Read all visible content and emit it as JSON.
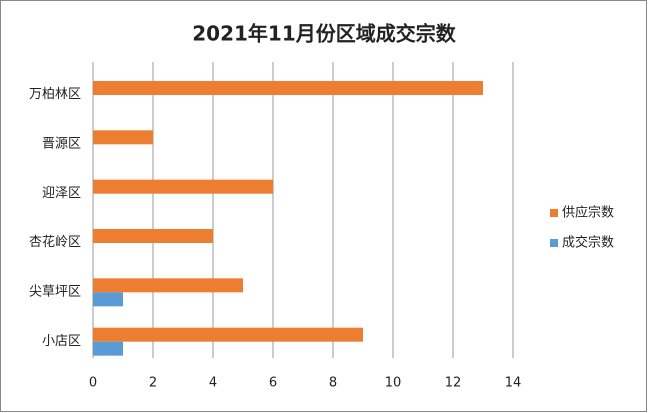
{
  "chart_data": {
    "type": "barh",
    "title": "2021年11月份区域成交宗数",
    "categories": [
      "万柏林区",
      "晋源区",
      "迎泽区",
      "杏花岭区",
      "尖草坪区",
      "小店区"
    ],
    "series": [
      {
        "name": "供应宗数",
        "color": "#ed7d31",
        "values": [
          13,
          2,
          6,
          4,
          5,
          9
        ]
      },
      {
        "name": "成交宗数",
        "color": "#5b9bd5",
        "values": [
          0,
          0,
          0,
          0,
          1,
          1
        ]
      }
    ],
    "xlim": [
      0,
      14
    ],
    "xticks": [
      0,
      2,
      4,
      6,
      8,
      10,
      12,
      14
    ],
    "grid": true,
    "legend": "right"
  }
}
